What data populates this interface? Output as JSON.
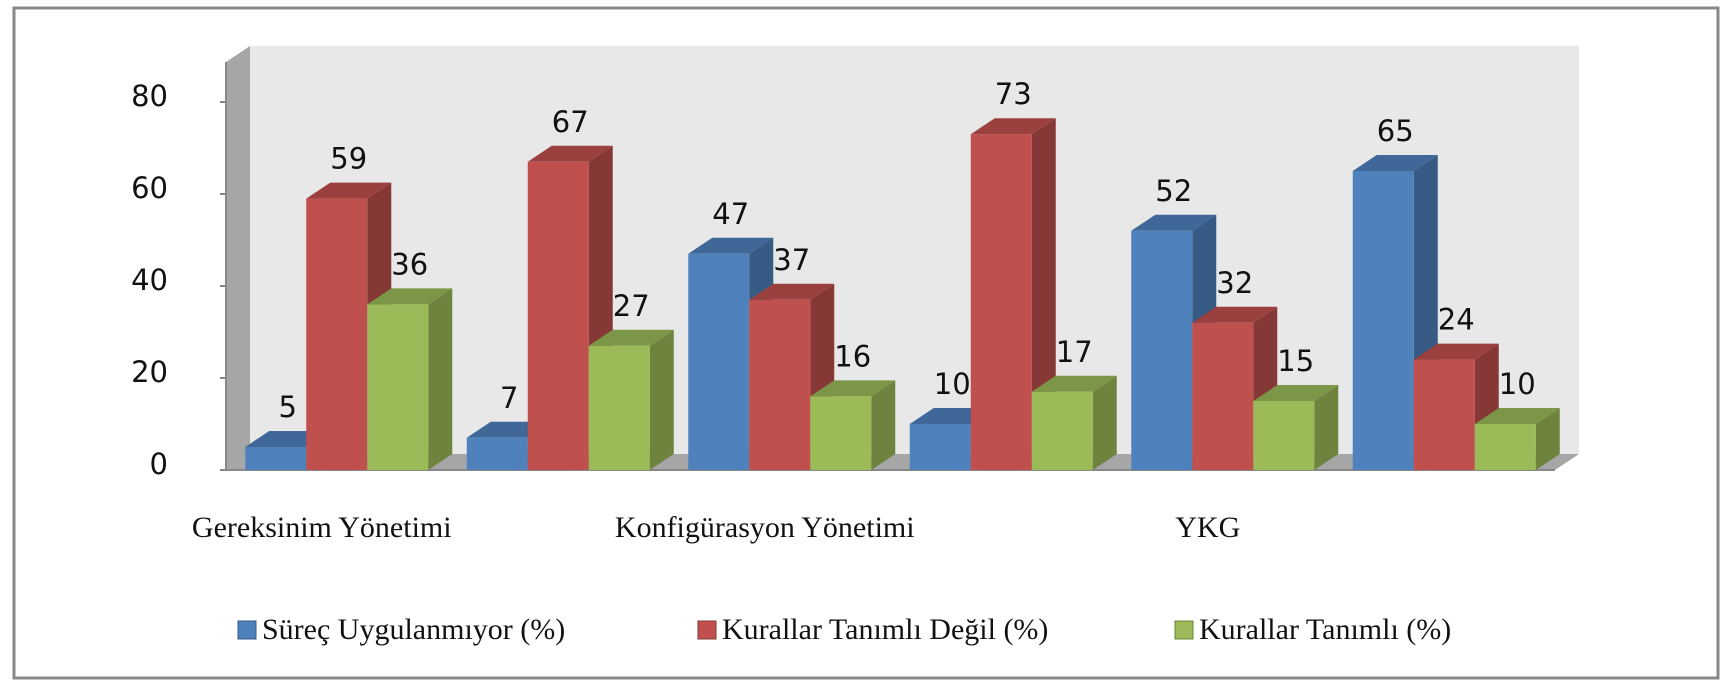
{
  "chart_data": {
    "type": "bar3d",
    "categories": [
      "Gereksinim Yönetimi",
      null,
      "Konfigürasyon Yönetimi",
      null,
      "YKG",
      null
    ],
    "series": [
      {
        "name": "Süreç Uygulanmıyor (%)",
        "color": "#4f81bd",
        "values": [
          5,
          7,
          47,
          10,
          52,
          65
        ]
      },
      {
        "name": "Kurallar Tanımlı Değil (%)",
        "color": "#c0504d",
        "values": [
          59,
          67,
          37,
          73,
          32,
          24
        ]
      },
      {
        "name": "Kurallar Tanımlı (%)",
        "color": "#9bbb59",
        "values": [
          36,
          27,
          16,
          17,
          15,
          10
        ]
      }
    ],
    "ylim": [
      0,
      80
    ],
    "yticks": [
      0,
      20,
      40,
      60,
      80
    ],
    "legend": "bottom"
  }
}
